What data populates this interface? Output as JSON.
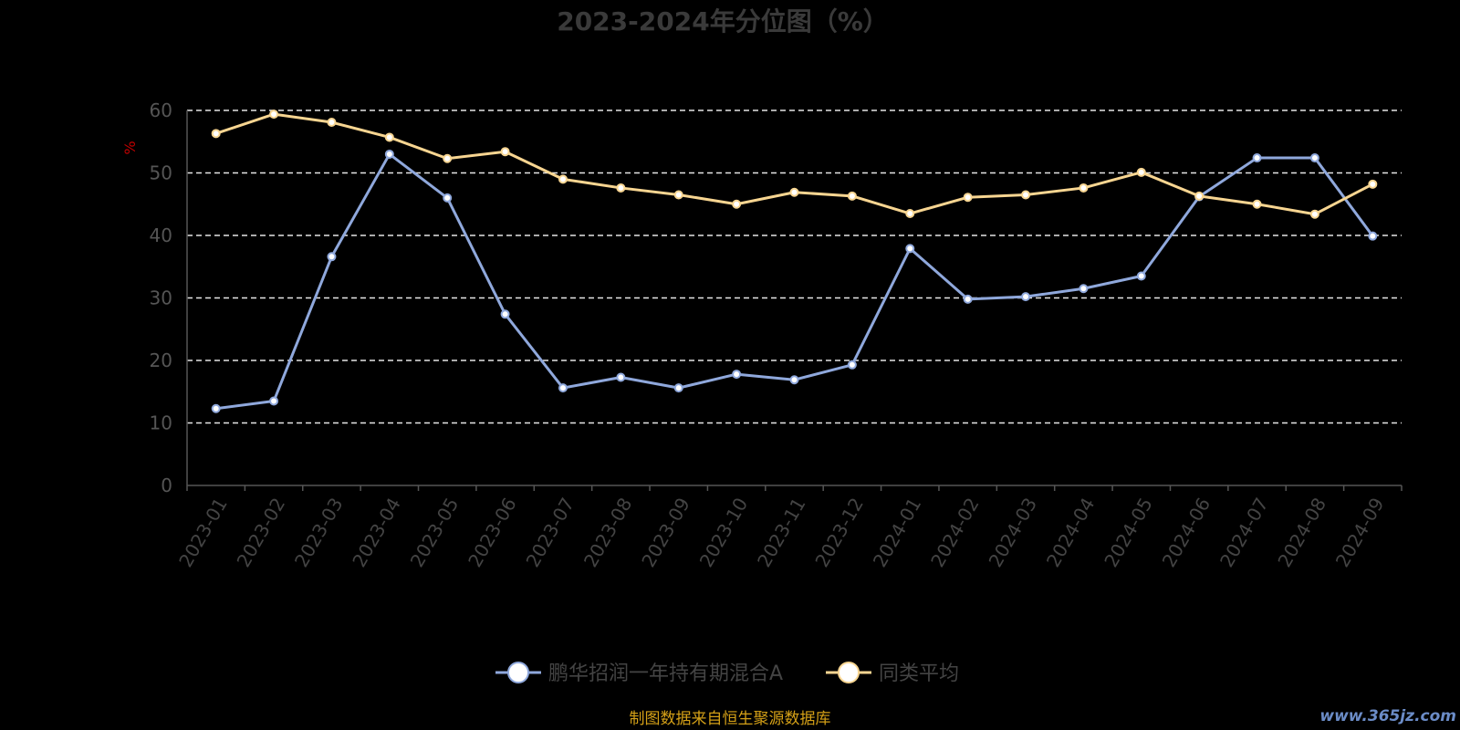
{
  "chart_data": {
    "type": "line",
    "title": "2023-2024年分位图（%）",
    "ylabel": "%",
    "ylim": [
      0,
      60
    ],
    "yticks": [
      0,
      10,
      20,
      30,
      40,
      50,
      60
    ],
    "grid": true,
    "legend_position": "bottom-center",
    "categories": [
      "2023-01",
      "2023-02",
      "2023-03",
      "2023-04",
      "2023-05",
      "2023-06",
      "2023-07",
      "2023-08",
      "2023-09",
      "2023-10",
      "2023-11",
      "2023-12",
      "2024-01",
      "2024-02",
      "2024-03",
      "2024-04",
      "2024-05",
      "2024-06",
      "2024-07",
      "2024-08",
      "2024-09"
    ],
    "series": [
      {
        "name": "鹏华招润一年持有期混合A",
        "color": "#8fa8dc",
        "values": [
          12.3,
          13.5,
          36.6,
          53.0,
          46.0,
          27.4,
          15.6,
          17.3,
          15.6,
          17.8,
          16.9,
          19.3,
          37.9,
          29.8,
          30.2,
          31.5,
          33.5,
          46.2,
          52.4,
          52.4,
          39.9
        ]
      },
      {
        "name": "同类平均",
        "color": "#f7d591",
        "values": [
          56.3,
          59.4,
          58.1,
          55.7,
          52.3,
          53.4,
          49.0,
          47.6,
          46.5,
          45.0,
          46.9,
          46.3,
          43.5,
          46.1,
          46.5,
          47.6,
          50.1,
          46.3,
          45.0,
          43.4,
          48.2
        ]
      }
    ]
  },
  "footer": {
    "source": "制图数据来自恒生聚源数据库",
    "watermark": "www.365jz.com"
  }
}
